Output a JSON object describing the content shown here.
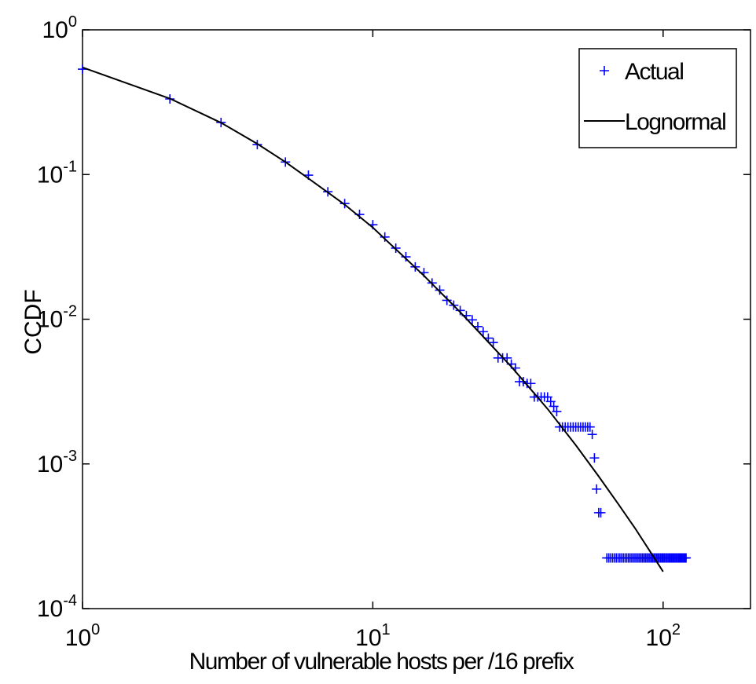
{
  "chart_data": {
    "type": "scatter",
    "xlabel": "Number of vulnerable hosts per /16 prefix",
    "ylabel": "CCDF",
    "xscale": "log",
    "yscale": "log",
    "xlim": [
      1,
      200
    ],
    "ylim": [
      0.0001,
      1
    ],
    "xticks": [
      {
        "value": 1,
        "label": "10",
        "exponent": "0"
      },
      {
        "value": 10,
        "label": "10",
        "exponent": "1"
      },
      {
        "value": 100,
        "label": "10",
        "exponent": "2"
      }
    ],
    "yticks": [
      {
        "value": 0.0001,
        "label": "10",
        "exponent": "-4"
      },
      {
        "value": 0.001,
        "label": "10",
        "exponent": "-3"
      },
      {
        "value": 0.01,
        "label": "10",
        "exponent": "-2"
      },
      {
        "value": 0.1,
        "label": "10",
        "exponent": "-1"
      },
      {
        "value": 1,
        "label": "10",
        "exponent": "0"
      }
    ],
    "legend": "upper right",
    "series": [
      {
        "name": "Actual",
        "color": "#0000ff",
        "mode": "markers",
        "x": [
          1,
          2,
          3,
          4,
          5,
          6,
          7,
          8,
          9,
          10,
          11,
          12,
          13,
          14,
          15,
          16,
          17,
          18,
          19,
          20,
          21,
          22,
          23,
          24,
          25,
          26,
          27,
          28,
          29,
          30,
          31,
          32,
          33,
          34,
          35,
          36,
          37,
          38,
          39,
          40,
          41,
          42,
          43,
          44,
          45,
          46,
          47,
          48,
          49,
          50,
          51,
          52,
          53,
          54,
          55,
          56,
          57,
          58,
          59,
          60,
          61,
          64,
          65,
          66,
          67,
          68,
          69,
          70,
          71,
          72,
          73,
          74,
          75,
          76,
          77,
          78,
          79,
          80,
          81,
          82,
          83,
          84,
          85,
          86,
          87,
          88,
          89,
          90,
          91,
          92,
          93,
          94,
          95,
          96,
          97,
          98,
          99,
          100,
          101,
          102,
          103,
          104,
          105,
          106,
          107,
          108,
          109,
          110,
          111,
          112,
          113,
          114,
          115,
          116,
          117,
          118,
          119,
          120
        ],
        "values": [
          0.535,
          0.333,
          0.229,
          0.161,
          0.122,
          0.099,
          0.076,
          0.063,
          0.053,
          0.045,
          0.037,
          0.031,
          0.027,
          0.023,
          0.021,
          0.0178,
          0.0159,
          0.0135,
          0.0125,
          0.0115,
          0.0106,
          0.0099,
          0.0089,
          0.0082,
          0.0074,
          0.0069,
          0.0054,
          0.0054,
          0.0054,
          0.0049,
          0.0046,
          0.0037,
          0.0037,
          0.0036,
          0.0036,
          0.0029,
          0.0029,
          0.0029,
          0.0029,
          0.0029,
          0.0027,
          0.0025,
          0.0023,
          0.0018,
          0.0018,
          0.0018,
          0.0018,
          0.0018,
          0.0018,
          0.0018,
          0.0018,
          0.0018,
          0.0018,
          0.0018,
          0.0018,
          0.0018,
          0.0016,
          0.0011,
          0.00067,
          0.00046,
          0.00046,
          0.000224,
          0.000224,
          0.000224,
          0.000224,
          0.000224,
          0.000224,
          0.000224,
          0.000224,
          0.000224,
          0.000224,
          0.000224,
          0.000224,
          0.000224,
          0.000224,
          0.000224,
          0.000224,
          0.000224,
          0.000224,
          0.000224,
          0.000224,
          0.000224,
          0.000224,
          0.000224,
          0.000224,
          0.000224,
          0.000224,
          0.000224,
          0.000224,
          0.000224,
          0.000224,
          0.000224,
          0.000224,
          0.000224,
          0.000224,
          0.000224,
          0.000224,
          0.000224,
          0.000224,
          0.000224,
          0.000224,
          0.000224,
          0.000224,
          0.000224,
          0.000224,
          0.000224,
          0.000224,
          0.000224,
          0.000224,
          0.000224,
          0.000224,
          0.000224,
          0.000224,
          0.000224,
          0.000224,
          0.000224,
          0.000224,
          0.000224
        ]
      },
      {
        "name": "Lognormal",
        "color": "#000000",
        "mode": "lines",
        "x": [
          1,
          2,
          3,
          4,
          5,
          6,
          8,
          10,
          15,
          20,
          30,
          40,
          50,
          60,
          70,
          80,
          90,
          100
        ],
        "values": [
          0.55,
          0.335,
          0.228,
          0.163,
          0.122,
          0.094,
          0.062,
          0.043,
          0.02,
          0.0112,
          0.0047,
          0.0024,
          0.00135,
          0.00082,
          0.00053,
          0.00036,
          0.00025,
          0.00018
        ]
      }
    ]
  }
}
